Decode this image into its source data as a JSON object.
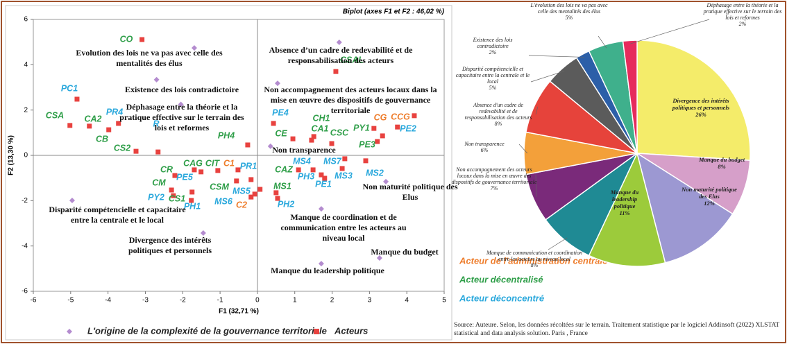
{
  "chart_data": [
    {
      "type": "scatter",
      "title": "Biplot (axes F1 et F2 : 46,02 %)",
      "xlabel": "F1 (32,71 %)",
      "ylabel": "F2 (13,30 %)",
      "xlim": [
        -6,
        5
      ],
      "ylim": [
        -6,
        6
      ],
      "xticks": [
        -6,
        -5,
        -4,
        -3,
        -2,
        -1,
        0,
        1,
        2,
        3,
        4,
        5
      ],
      "yticks": [
        -6,
        -4,
        -2,
        0,
        2,
        4,
        6
      ],
      "series": [
        {
          "name": "L'origine de la complexité de la gouvernance territoriale",
          "color": "#b48ccf",
          "marker": "diamond",
          "labels": [
            "Evolution des lois ne va pas avec celle des mentalités des élus",
            "Existence des lois contradictoire",
            "Déphasage entre la théorie et la pratique effective sur le terrain des lois et reformes",
            "Absence d’un cadre de redevabilité et de responsabilisation des acteurs",
            "Non accompagnement des acteurs locaux dans la mise en œuvre des dispositifs de gouvernance territoriale",
            "Non transparence",
            "Non maturité politique des Elus",
            "Disparité compétencielle et capacitaire entre la centrale et le local",
            "Divergence des intérêts politiques et personnels",
            "Manque de coordination et de communication entre les acteurs au niveau local",
            "Manque du budget",
            "Manque du leadership politique"
          ],
          "x": [
            -1.69,
            -2.7,
            -2.05,
            2.19,
            0.54,
            0.35,
            3.44,
            -4.96,
            -1.45,
            1.71,
            3.27,
            1.71
          ],
          "values": [
            4.74,
            3.34,
            2.25,
            4.99,
            3.18,
            0.4,
            -1.16,
            -1.99,
            -3.43,
            -2.36,
            -4.53,
            -4.78
          ]
        },
        {
          "name": "Acteurs",
          "color": "#e8423f",
          "marker": "square",
          "labels": [
            "CO",
            "PC1",
            "CSA",
            "CA2",
            "PR4",
            "CB",
            "CS2",
            "R",
            "PH4",
            "CAG",
            "CIT",
            "C1",
            "PR1",
            "CR",
            "PE5",
            "CM",
            "PY2",
            "CS1",
            "PH1",
            "CSM",
            "MS5",
            "MS6",
            "C2",
            "MS1",
            "PH2",
            "CAZ",
            "MS4",
            "PH3",
            "PE1",
            "MS7",
            "MS3",
            "MS2",
            "PE4",
            "CE",
            "CH1",
            "CA1",
            "CSC",
            "CSAL",
            "CG",
            "PY1",
            "CCG",
            "PE2",
            "PE3"
          ],
          "label_colors": [
            "#2e9e48",
            "#2aa8dc",
            "#2e9e48",
            "#2e9e48",
            "#2aa8dc",
            "#2e9e48",
            "#2e9e48",
            "#2aa8dc",
            "#2e9e48",
            "#2e9e48",
            "#2e9e48",
            "#ee7d2c",
            "#2aa8dc",
            "#2e9e48",
            "#2aa8dc",
            "#2e9e48",
            "#2aa8dc",
            "#2e9e48",
            "#2aa8dc",
            "#2e9e48",
            "#2aa8dc",
            "#2aa8dc",
            "#ee7d2c",
            "#2e9e48",
            "#2aa8dc",
            "#2e9e48",
            "#2aa8dc",
            "#2aa8dc",
            "#2aa8dc",
            "#2aa8dc",
            "#2aa8dc",
            "#2aa8dc",
            "#2aa8dc",
            "#2e9e48",
            "#2e9e48",
            "#2e9e48",
            "#2e9e48",
            "#2e9e48",
            "#ee7d2c",
            "#2e9e48",
            "#ee7d2c",
            "#2aa8dc",
            "#2e9e48"
          ],
          "x": [
            -3.09,
            -4.83,
            -5.02,
            -4.5,
            -3.72,
            -3.98,
            -3.25,
            -2.66,
            -0.26,
            -1.69,
            -1.06,
            -0.52,
            -0.17,
            -2.21,
            -1.51,
            -2.3,
            -2.25,
            -1.75,
            -1.77,
            -0.56,
            0.07,
            -0.17,
            -0.07,
            0.5,
            0.54,
            1.1,
            1.49,
            1.71,
            1.8,
            2.34,
            2.27,
            2.9,
            0.43,
            0.95,
            1.51,
            1.45,
            1.99,
            2.1,
            3.75,
            3.12,
            4.2,
            3.35,
            3.21
          ],
          "values": [
            5.11,
            2.48,
            1.32,
            1.29,
            1.41,
            1.13,
            0.18,
            0.15,
            0.46,
            -0.64,
            -0.67,
            -0.64,
            -1.07,
            -0.89,
            -0.73,
            -1.53,
            -1.78,
            -1.62,
            -1.99,
            -1.13,
            -1.5,
            -1.84,
            -1.71,
            -1.65,
            -1.9,
            -0.64,
            -0.64,
            -0.86,
            -1.01,
            -0.15,
            -0.58,
            -0.24,
            1.41,
            0.73,
            0.83,
            0.67,
            0.52,
            3.7,
            1.25,
            1.19,
            1.75,
            0.86,
            0.61
          ]
        }
      ],
      "groups": [
        {
          "name": "Acteur de l'administration centrale",
          "color": "#ee7d2c"
        },
        {
          "name": "Acteur décentralisé",
          "color": "#2e9e48"
        },
        {
          "name": "Acteur déconcentré",
          "color": "#2aa8dc"
        }
      ]
    },
    {
      "type": "pie",
      "categories": [
        "Divergence des intérêts politiques et personnels",
        "Manque du budget",
        "Non maturité politique des Elus",
        "Manque du leadership politique",
        "Manque de communication et coordination entre les acteurs au niveau local",
        "Non accompagnement des acteurs locaux dans la mise en œuvre des dispositifs de gouvernance territoriale",
        "Non transparence",
        "Absence d'un cadre de redevabilité et de responsabilisation des acteurs",
        "Disparité compétencielle et capacitaire entre la centrale et le local",
        "Existence des lois contradictoire",
        "L'évolution des lois ne va pas avec celle des mentalités des élus",
        "Déphasage entre la théorie et la pratique effective sur le terrain des lois et reformes"
      ],
      "values": [
        26,
        8,
        12,
        11,
        8,
        7,
        6,
        8,
        5,
        2,
        5,
        2
      ],
      "value_labels": [
        "26%",
        "8%",
        "12%",
        "11%",
        "8%",
        "7%",
        "6%",
        "8%",
        "5%",
        "2%",
        "5%",
        "2%"
      ],
      "colors": [
        "#f4ec6a",
        "#d69fc9",
        "#9c98d2",
        "#9ccb3b",
        "#1f8a94",
        "#7a2a7a",
        "#f3a03a",
        "#e6433b",
        "#5b5b5b",
        "#2c5fa8",
        "#3fb08c",
        "#e62b5c"
      ]
    }
  ],
  "source": "Source: Auteure. Selon, les données récoltées sur le terrain. Traitement statistique par le logiciel Addinsoft (2022) XLSTAT statistical and data analysis solution. Paris , France"
}
